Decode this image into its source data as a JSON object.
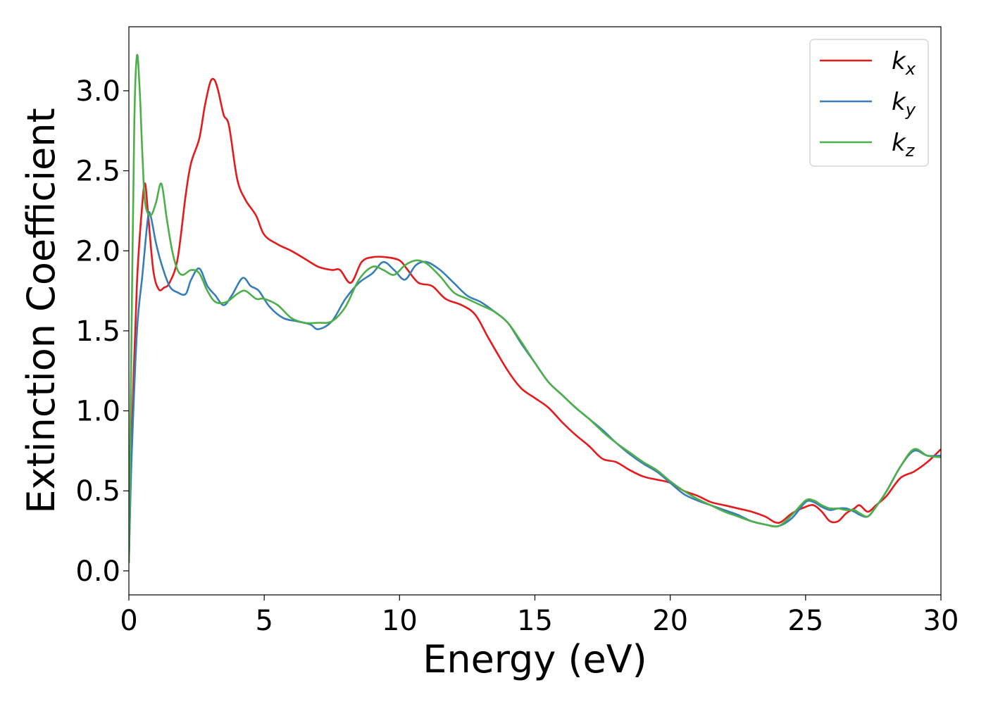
{
  "chart_data": {
    "type": "line",
    "title": "",
    "xlabel": "Energy (eV)",
    "ylabel": "Extinction Coefficient",
    "xlim": [
      0,
      30
    ],
    "ylim": [
      -0.15,
      3.4
    ],
    "xticks": [
      0,
      5,
      10,
      15,
      20,
      25,
      30
    ],
    "xtick_labels": [
      "0",
      "5",
      "10",
      "15",
      "20",
      "25",
      "30"
    ],
    "yticks": [
      0.0,
      0.5,
      1.0,
      1.5,
      2.0,
      2.5,
      3.0
    ],
    "ytick_labels": [
      "0.0",
      "0.5",
      "1.0",
      "1.5",
      "2.0",
      "2.5",
      "3.0"
    ],
    "grid": false,
    "legend": "top-right",
    "series": [
      {
        "name": "k_x",
        "legend_base": "k",
        "legend_sub": "x",
        "color": "#e41a1c",
        "x": [
          0,
          0.1,
          0.3,
          0.5,
          0.6,
          0.7,
          0.9,
          1.1,
          1.3,
          1.5,
          1.8,
          2.1,
          2.3,
          2.6,
          2.8,
          3.0,
          3.15,
          3.3,
          3.5,
          3.7,
          4.0,
          4.3,
          4.7,
          5.0,
          5.5,
          6.0,
          6.5,
          7.0,
          7.5,
          7.8,
          8.2,
          8.6,
          9.0,
          9.5,
          10.0,
          10.3,
          10.7,
          11.2,
          11.7,
          12.3,
          12.8,
          13.3,
          14.0,
          14.5,
          15.0,
          15.5,
          16.0,
          16.5,
          17.0,
          17.5,
          18.0,
          18.5,
          19.0,
          19.5,
          20.0,
          20.5,
          21.0,
          21.5,
          22.0,
          22.5,
          23.0,
          23.5,
          24.0,
          24.5,
          25.0,
          25.3,
          25.6,
          25.9,
          26.2,
          26.5,
          26.8,
          27.0,
          27.3,
          27.6,
          28.0,
          28.5,
          29.0,
          29.5,
          30.0
        ],
        "y": [
          0.05,
          0.8,
          1.8,
          2.3,
          2.42,
          2.25,
          1.88,
          1.76,
          1.77,
          1.8,
          1.95,
          2.35,
          2.55,
          2.7,
          2.9,
          3.05,
          3.07,
          3.0,
          2.85,
          2.78,
          2.45,
          2.32,
          2.22,
          2.1,
          2.04,
          2.0,
          1.95,
          1.9,
          1.88,
          1.88,
          1.8,
          1.93,
          1.96,
          1.96,
          1.94,
          1.88,
          1.8,
          1.78,
          1.7,
          1.66,
          1.6,
          1.45,
          1.25,
          1.14,
          1.08,
          1.02,
          0.93,
          0.85,
          0.78,
          0.7,
          0.68,
          0.63,
          0.59,
          0.57,
          0.55,
          0.5,
          0.47,
          0.43,
          0.41,
          0.39,
          0.37,
          0.34,
          0.3,
          0.36,
          0.4,
          0.41,
          0.37,
          0.31,
          0.31,
          0.36,
          0.39,
          0.41,
          0.37,
          0.41,
          0.47,
          0.58,
          0.62,
          0.68,
          0.76
        ]
      },
      {
        "name": "k_y",
        "legend_base": "k",
        "legend_sub": "y",
        "color": "#377eb8",
        "x": [
          0,
          0.1,
          0.3,
          0.5,
          0.7,
          0.8,
          1.0,
          1.2,
          1.5,
          1.8,
          2.1,
          2.3,
          2.6,
          2.9,
          3.2,
          3.5,
          3.8,
          4.2,
          4.5,
          4.8,
          5.2,
          5.7,
          6.2,
          6.7,
          7.0,
          7.5,
          8.0,
          8.5,
          9.0,
          9.4,
          9.8,
          10.2,
          10.6,
          11.0,
          11.5,
          12.0,
          12.5,
          13.0,
          13.5,
          14.0,
          14.5,
          15.0,
          15.5,
          16.0,
          16.5,
          17.0,
          17.5,
          18.0,
          18.5,
          19.0,
          19.5,
          20.0,
          20.5,
          21.0,
          21.5,
          22.0,
          22.5,
          23.0,
          23.5,
          24.0,
          24.5,
          25.0,
          25.3,
          25.6,
          25.9,
          26.2,
          26.5,
          26.8,
          27.0,
          27.3,
          27.6,
          28.0,
          28.5,
          29.0,
          29.5,
          30.0
        ],
        "y": [
          0.05,
          0.7,
          1.5,
          1.85,
          2.2,
          2.22,
          2.05,
          1.92,
          1.78,
          1.74,
          1.73,
          1.82,
          1.89,
          1.78,
          1.72,
          1.66,
          1.72,
          1.83,
          1.78,
          1.75,
          1.65,
          1.58,
          1.56,
          1.54,
          1.51,
          1.56,
          1.7,
          1.8,
          1.86,
          1.93,
          1.88,
          1.82,
          1.91,
          1.93,
          1.88,
          1.8,
          1.72,
          1.68,
          1.62,
          1.55,
          1.42,
          1.3,
          1.18,
          1.1,
          1.02,
          0.95,
          0.88,
          0.8,
          0.73,
          0.67,
          0.62,
          0.55,
          0.48,
          0.44,
          0.41,
          0.38,
          0.35,
          0.31,
          0.29,
          0.28,
          0.33,
          0.43,
          0.43,
          0.4,
          0.38,
          0.39,
          0.39,
          0.37,
          0.35,
          0.34,
          0.4,
          0.5,
          0.65,
          0.75,
          0.72,
          0.72
        ]
      },
      {
        "name": "k_z",
        "legend_base": "k",
        "legend_sub": "z",
        "color": "#4daf4a",
        "x": [
          0,
          0.1,
          0.2,
          0.3,
          0.4,
          0.5,
          0.6,
          0.8,
          1.0,
          1.2,
          1.4,
          1.6,
          1.8,
          2.0,
          2.3,
          2.6,
          2.9,
          3.2,
          3.6,
          4.0,
          4.3,
          4.7,
          5.0,
          5.5,
          6.0,
          6.5,
          7.0,
          7.5,
          8.0,
          8.5,
          9.0,
          9.4,
          9.8,
          10.2,
          10.6,
          11.0,
          11.5,
          12.0,
          12.5,
          13.0,
          13.5,
          14.0,
          14.5,
          15.0,
          15.5,
          16.0,
          16.5,
          17.0,
          17.5,
          18.0,
          18.5,
          19.0,
          19.5,
          20.0,
          20.5,
          21.0,
          21.5,
          22.0,
          22.5,
          23.0,
          23.5,
          24.0,
          24.5,
          25.0,
          25.3,
          25.6,
          25.9,
          26.2,
          26.5,
          26.8,
          27.0,
          27.3,
          27.6,
          28.0,
          28.5,
          29.0,
          29.5,
          30.0
        ],
        "y": [
          0.05,
          1.5,
          2.8,
          3.22,
          3.0,
          2.6,
          2.3,
          2.22,
          2.3,
          2.42,
          2.2,
          2.0,
          1.88,
          1.85,
          1.88,
          1.86,
          1.75,
          1.68,
          1.68,
          1.73,
          1.75,
          1.7,
          1.7,
          1.66,
          1.58,
          1.55,
          1.55,
          1.56,
          1.65,
          1.82,
          1.9,
          1.88,
          1.85,
          1.91,
          1.94,
          1.92,
          1.84,
          1.74,
          1.7,
          1.66,
          1.62,
          1.55,
          1.43,
          1.3,
          1.18,
          1.1,
          1.02,
          0.95,
          0.87,
          0.8,
          0.74,
          0.68,
          0.63,
          0.56,
          0.5,
          0.45,
          0.41,
          0.37,
          0.34,
          0.31,
          0.29,
          0.28,
          0.35,
          0.44,
          0.44,
          0.41,
          0.39,
          0.39,
          0.38,
          0.38,
          0.36,
          0.34,
          0.4,
          0.5,
          0.65,
          0.76,
          0.72,
          0.71
        ]
      }
    ]
  }
}
